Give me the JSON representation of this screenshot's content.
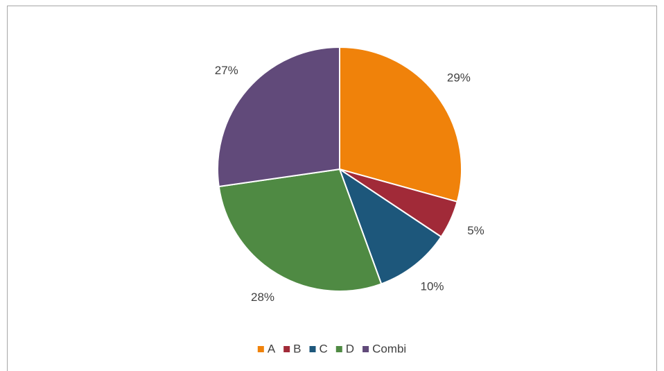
{
  "chart_data": {
    "type": "pie",
    "categories": [
      "A",
      "B",
      "C",
      "D",
      "Combi"
    ],
    "values": [
      29,
      5,
      10,
      28,
      27
    ],
    "value_labels": [
      "29%",
      "5%",
      "10%",
      "28%",
      "27%"
    ],
    "colors": [
      "#f0820a",
      "#a12a38",
      "#1d577b",
      "#4f8a43",
      "#614a7a"
    ],
    "legend": "bottom"
  }
}
